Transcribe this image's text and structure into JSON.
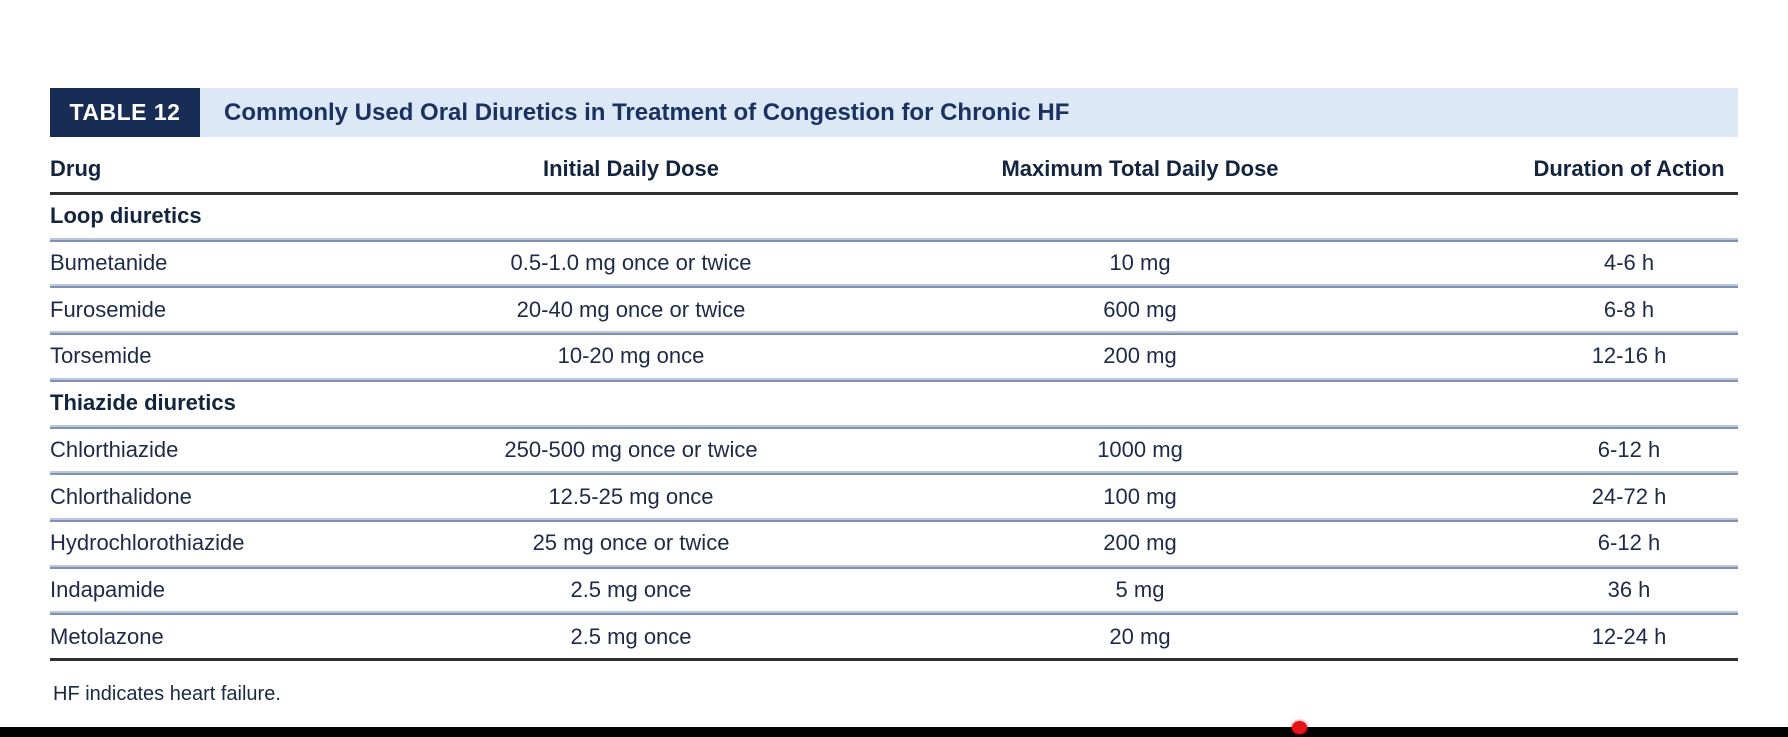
{
  "colors": {
    "tab_bg": "#172d56",
    "band_bg": "#dde8f6",
    "title_text": "#1b3261",
    "body_text": "#1e2a47",
    "rule_dark": "#2e2e2e",
    "separator_dark": "#8191b3",
    "separator_light": "#bcc6db",
    "bottom_bar": "#030303",
    "marker_red": "#e81318"
  },
  "table": {
    "tab_label": "TABLE 12",
    "title": "Commonly Used Oral Diuretics in Treatment of Congestion for Chronic HF",
    "columns": [
      "Drug",
      "Initial Daily Dose",
      "Maximum Total Daily Dose",
      "Duration of Action"
    ],
    "groups": [
      {
        "label": "Loop diuretics",
        "rows": [
          {
            "drug": "Bumetanide",
            "initial": "0.5-1.0 mg once or twice",
            "max": "10 mg",
            "duration": "4-6 h"
          },
          {
            "drug": "Furosemide",
            "initial": "20-40 mg once or twice",
            "max": "600 mg",
            "duration": "6-8 h"
          },
          {
            "drug": "Torsemide",
            "initial": "10-20 mg once",
            "max": "200 mg",
            "duration": "12-16 h"
          }
        ]
      },
      {
        "label": "Thiazide diuretics",
        "rows": [
          {
            "drug": "Chlorthiazide",
            "initial": "250-500 mg once or twice",
            "max": "1000 mg",
            "duration": "6-12 h"
          },
          {
            "drug": "Chlorthalidone",
            "initial": "12.5-25 mg once",
            "max": "100 mg",
            "duration": "24-72 h"
          },
          {
            "drug": "Hydrochlorothiazide",
            "initial": "25 mg once or twice",
            "max": "200 mg",
            "duration": "6-12 h"
          },
          {
            "drug": "Indapamide",
            "initial": "2.5 mg once",
            "max": "5 mg",
            "duration": "36 h"
          },
          {
            "drug": "Metolazone",
            "initial": "2.5 mg once",
            "max": "20 mg",
            "duration": "12-24 h"
          }
        ]
      }
    ],
    "footnote": "HF indicates heart failure."
  }
}
